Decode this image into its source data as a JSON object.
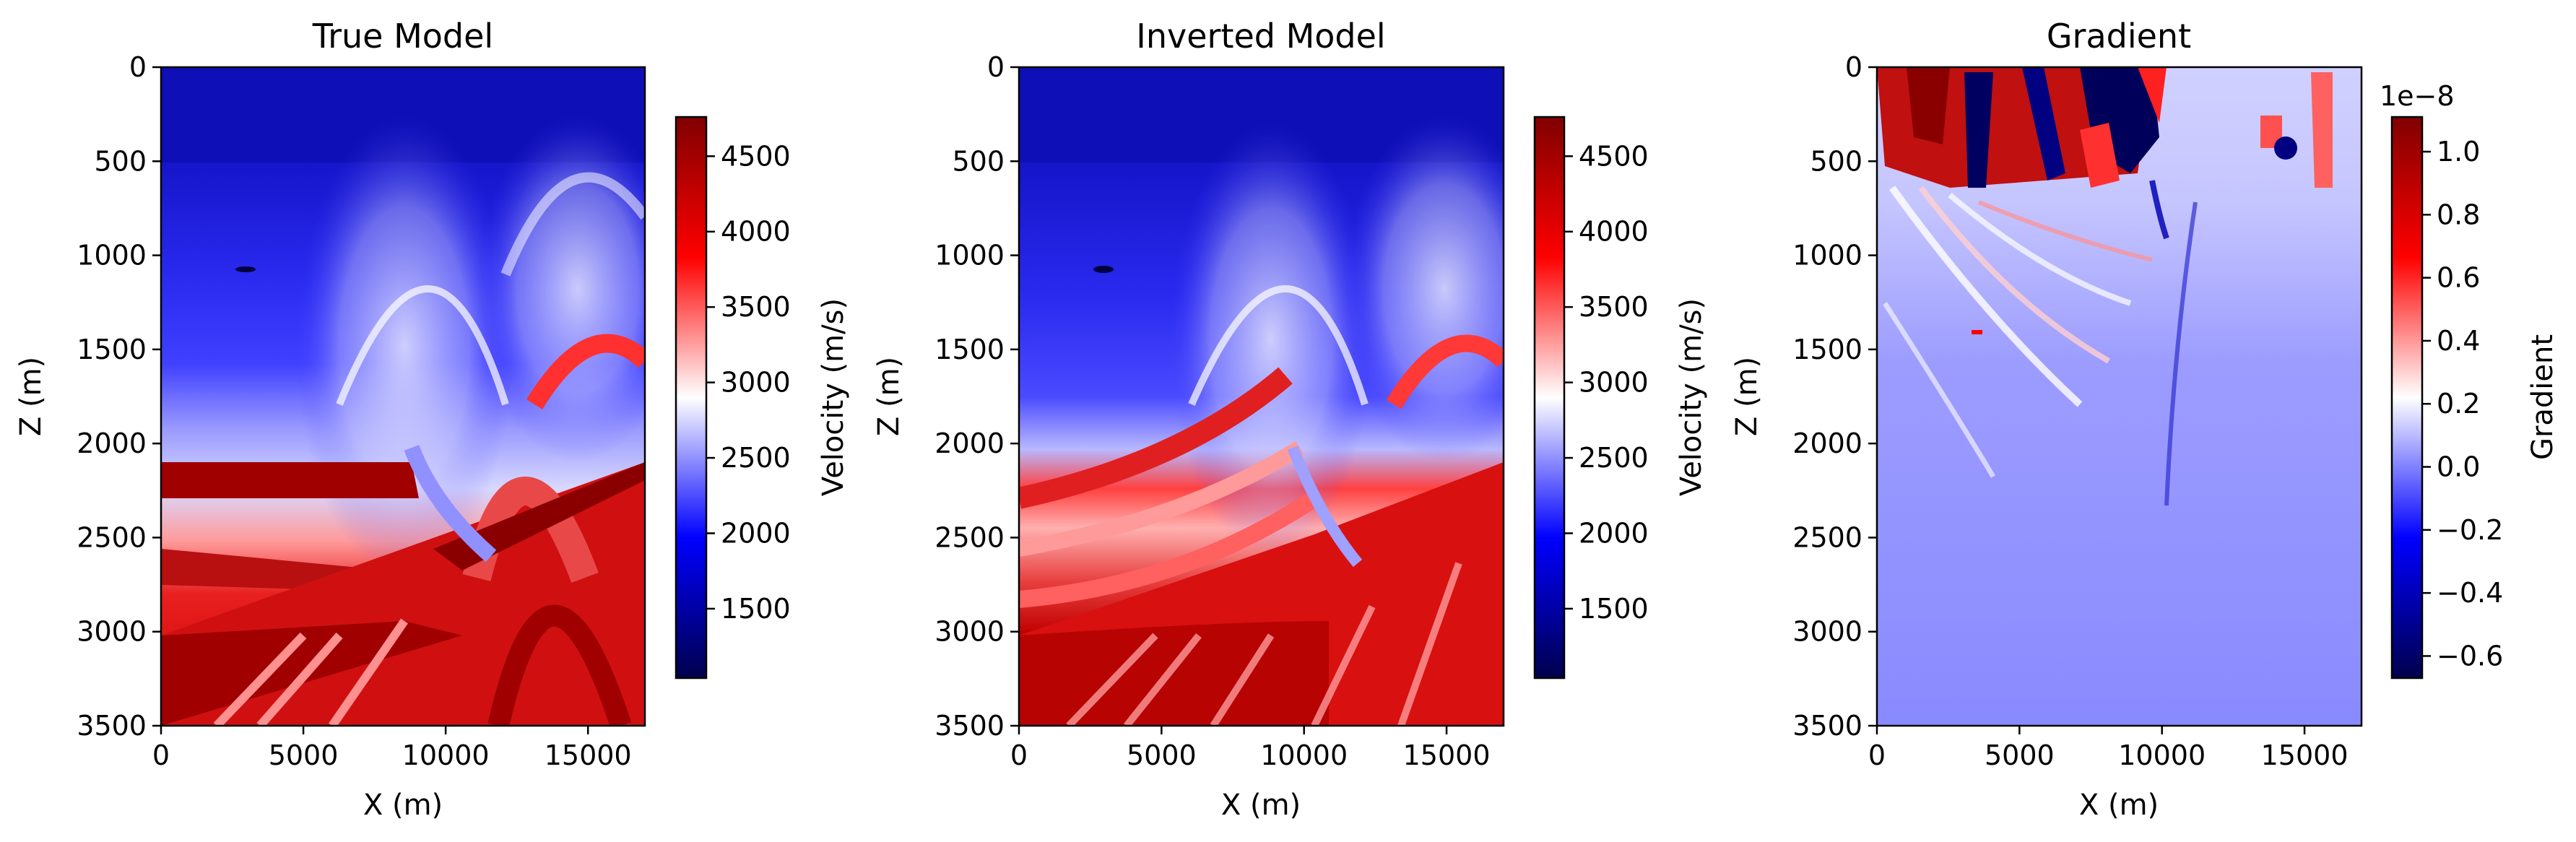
{
  "chart_data": [
    {
      "type": "heatmap",
      "title": "True Model",
      "xlabel": "X (m)",
      "ylabel": "Z (m)",
      "xlim": [
        0,
        17000
      ],
      "ylim": [
        3500,
        0
      ],
      "xticks": [
        "0",
        "5000",
        "10000",
        "15000"
      ],
      "yticks": [
        "0",
        "500",
        "1000",
        "1500",
        "2000",
        "2500",
        "3000",
        "3500"
      ],
      "colorbar": {
        "label": "Velocity (m/s)",
        "range": [
          1040,
          4760
        ],
        "ticks": [
          "1500",
          "2000",
          "2500",
          "3000",
          "3500",
          "4000",
          "4500"
        ],
        "offset": ""
      }
    },
    {
      "type": "heatmap",
      "title": "Inverted Model",
      "xlabel": "X (m)",
      "ylabel": "Z (m)",
      "xlim": [
        0,
        17000
      ],
      "ylim": [
        3500,
        0
      ],
      "xticks": [
        "0",
        "5000",
        "10000",
        "15000"
      ],
      "yticks": [
        "0",
        "500",
        "1000",
        "1500",
        "2000",
        "2500",
        "3000",
        "3500"
      ],
      "colorbar": {
        "label": "Velocity (m/s)",
        "range": [
          1040,
          4760
        ],
        "ticks": [
          "1500",
          "2000",
          "2500",
          "3000",
          "3500",
          "4000",
          "4500"
        ],
        "offset": ""
      }
    },
    {
      "type": "heatmap",
      "title": "Gradient",
      "xlabel": "X (m)",
      "ylabel": "Z (m)",
      "xlim": [
        0,
        17000
      ],
      "ylim": [
        3500,
        0
      ],
      "xticks": [
        "0",
        "5000",
        "10000",
        "15000"
      ],
      "yticks": [
        "0",
        "500",
        "1000",
        "1500",
        "2000",
        "2500",
        "3000",
        "3500"
      ],
      "colorbar": {
        "label": "Gradient",
        "range": [
          -0.67,
          1.11
        ],
        "ticks": [
          "−0.6",
          "−0.4",
          "−0.2",
          "0.0",
          "0.2",
          "0.4",
          "0.6",
          "0.8",
          "1.0"
        ],
        "offset": "1e−8"
      }
    }
  ]
}
